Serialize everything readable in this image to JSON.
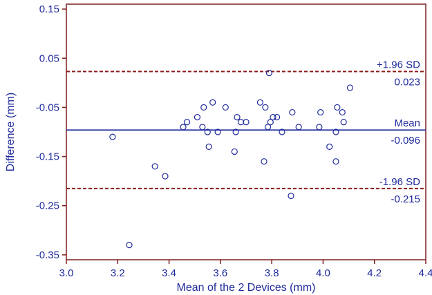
{
  "chart_data": {
    "type": "scatter",
    "title": "",
    "xlabel": "Mean of the 2 Devices (mm)",
    "ylabel": "Difference (mm)",
    "xlim": [
      3.0,
      4.4
    ],
    "ylim": [
      -0.36,
      0.16
    ],
    "x_ticks": [
      "3.0",
      "3.2",
      "3.4",
      "3.6",
      "3.8",
      "4.0",
      "4.2",
      "4.4"
    ],
    "y_ticks": [
      "0.15",
      "0.05",
      "-0.05",
      "-0.15",
      "-0.25",
      "-0.35"
    ],
    "grid": false,
    "colors": {
      "frame": "#7b1f1f",
      "points": "#1f2a9c",
      "mean_line": "#1f2a9c",
      "limit_lines": "#8b1a1a",
      "text": "#1f2a9c"
    },
    "reference_lines": [
      {
        "key": "upper",
        "label": "+1.96 SD",
        "value_label": "0.023",
        "y": 0.023,
        "style": "dashed"
      },
      {
        "key": "mean",
        "label": "Mean",
        "value_label": "-0.096",
        "y": -0.096,
        "style": "solid"
      },
      {
        "key": "lower",
        "label": "-1.96 SD",
        "value_label": "-0.215",
        "y": -0.215,
        "style": "dashed"
      }
    ],
    "points": [
      {
        "x": 3.18,
        "y": -0.11
      },
      {
        "x": 3.245,
        "y": -0.33
      },
      {
        "x": 3.345,
        "y": -0.17
      },
      {
        "x": 3.385,
        "y": -0.19
      },
      {
        "x": 3.455,
        "y": -0.09
      },
      {
        "x": 3.47,
        "y": -0.08
      },
      {
        "x": 3.51,
        "y": -0.07
      },
      {
        "x": 3.53,
        "y": -0.09
      },
      {
        "x": 3.535,
        "y": -0.05
      },
      {
        "x": 3.55,
        "y": -0.1
      },
      {
        "x": 3.555,
        "y": -0.13
      },
      {
        "x": 3.57,
        "y": -0.04
      },
      {
        "x": 3.59,
        "y": -0.1
      },
      {
        "x": 3.62,
        "y": -0.05
      },
      {
        "x": 3.655,
        "y": -0.14
      },
      {
        "x": 3.66,
        "y": -0.1
      },
      {
        "x": 3.665,
        "y": -0.07
      },
      {
        "x": 3.68,
        "y": -0.08
      },
      {
        "x": 3.7,
        "y": -0.08
      },
      {
        "x": 3.755,
        "y": -0.04
      },
      {
        "x": 3.77,
        "y": -0.16
      },
      {
        "x": 3.775,
        "y": -0.05
      },
      {
        "x": 3.785,
        "y": -0.09
      },
      {
        "x": 3.79,
        "y": 0.02
      },
      {
        "x": 3.795,
        "y": -0.08
      },
      {
        "x": 3.805,
        "y": -0.07
      },
      {
        "x": 3.82,
        "y": -0.07
      },
      {
        "x": 3.84,
        "y": -0.1
      },
      {
        "x": 3.875,
        "y": -0.23
      },
      {
        "x": 3.88,
        "y": -0.06
      },
      {
        "x": 3.905,
        "y": -0.09
      },
      {
        "x": 3.985,
        "y": -0.09
      },
      {
        "x": 3.99,
        "y": -0.06
      },
      {
        "x": 4.025,
        "y": -0.13
      },
      {
        "x": 4.05,
        "y": -0.16
      },
      {
        "x": 4.05,
        "y": -0.1
      },
      {
        "x": 4.055,
        "y": -0.05
      },
      {
        "x": 4.075,
        "y": -0.06
      },
      {
        "x": 4.08,
        "y": -0.08
      },
      {
        "x": 4.105,
        "y": -0.01
      }
    ]
  }
}
